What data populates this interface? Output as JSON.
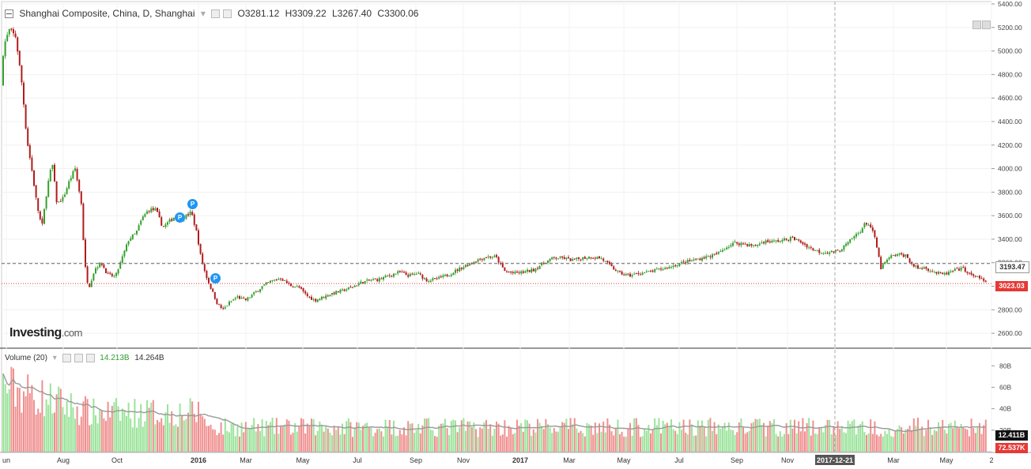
{
  "header": {
    "symbol": "Shanghai Composite, China, D, Shanghai",
    "open": "O3281.12",
    "high": "H3309.22",
    "low": "L3267.40",
    "close": "C3300.06"
  },
  "volume_legend": {
    "label": "Volume (20)",
    "value_green": "14.213B",
    "value_ma": "14.264B"
  },
  "price_labels": {
    "dashed_level": "3193.47",
    "last_price": "3023.03",
    "volume_current": "12.411B",
    "volume_secondary": "72.537K"
  },
  "crosshair_date": "2017-12-21",
  "badges": [
    "P",
    "P",
    "P"
  ],
  "logo": {
    "brand": "Investing",
    "suffix": ".com"
  },
  "colors": {
    "up": "#33a02c",
    "down": "#b01c1c",
    "vol_up": "#9be39b",
    "vol_down": "#f08f8f",
    "ma": "#999999",
    "last": "#e53935"
  },
  "chart_data": [
    {
      "type": "candlestick",
      "title": "Shanghai Composite, China, D, Shanghai",
      "yticks": [
        2600,
        2800,
        3000,
        3200,
        3400,
        3600,
        3800,
        4000,
        4200,
        4400,
        4600,
        4800,
        5000,
        5200,
        5400
      ],
      "ylim": [
        2480,
        5420
      ],
      "x_tick_labels": [
        "un",
        "Aug",
        "Oct",
        "2016",
        "Mar",
        "May",
        "Jul",
        "Sep",
        "Nov",
        "2017",
        "Mar",
        "May",
        "Jul",
        "Sep",
        "Nov",
        "2017-12-21",
        "Mar",
        "May",
        "2"
      ],
      "close_path": [
        [
          0,
          4700
        ],
        [
          5,
          5050
        ],
        [
          12,
          5180
        ],
        [
          20,
          5120
        ],
        [
          28,
          4700
        ],
        [
          34,
          4250
        ],
        [
          40,
          4000
        ],
        [
          47,
          3680
        ],
        [
          53,
          3500
        ],
        [
          60,
          3850
        ],
        [
          66,
          4050
        ],
        [
          72,
          3700
        ],
        [
          80,
          3750
        ],
        [
          88,
          3900
        ],
        [
          95,
          4000
        ],
        [
          103,
          3700
        ],
        [
          107,
          3200
        ],
        [
          112,
          2980
        ],
        [
          120,
          3150
        ],
        [
          128,
          3200
        ],
        [
          136,
          3100
        ],
        [
          146,
          3080
        ],
        [
          155,
          3250
        ],
        [
          163,
          3400
        ],
        [
          172,
          3450
        ],
        [
          180,
          3580
        ],
        [
          188,
          3650
        ],
        [
          197,
          3650
        ],
        [
          206,
          3500
        ],
        [
          214,
          3550
        ],
        [
          222,
          3600
        ],
        [
          232,
          3580
        ],
        [
          242,
          3630
        ],
        [
          249,
          3450
        ],
        [
          254,
          3250
        ],
        [
          260,
          3100
        ],
        [
          267,
          2980
        ],
        [
          275,
          2850
        ],
        [
          282,
          2800
        ],
        [
          290,
          2860
        ],
        [
          300,
          2910
        ],
        [
          310,
          2880
        ],
        [
          320,
          2930
        ],
        [
          332,
          3000
        ],
        [
          342,
          3040
        ],
        [
          355,
          3070
        ],
        [
          366,
          3010
        ],
        [
          378,
          2990
        ],
        [
          388,
          2920
        ],
        [
          398,
          2880
        ],
        [
          410,
          2910
        ],
        [
          420,
          2940
        ],
        [
          432,
          2960
        ],
        [
          444,
          2990
        ],
        [
          456,
          3030
        ],
        [
          468,
          3050
        ],
        [
          480,
          3060
        ],
        [
          492,
          3090
        ],
        [
          505,
          3120
        ],
        [
          517,
          3090
        ],
        [
          528,
          3110
        ],
        [
          540,
          3050
        ],
        [
          552,
          3060
        ],
        [
          564,
          3090
        ],
        [
          576,
          3130
        ],
        [
          590,
          3180
        ],
        [
          602,
          3220
        ],
        [
          615,
          3250
        ],
        [
          627,
          3250
        ],
        [
          638,
          3130
        ],
        [
          650,
          3110
        ],
        [
          662,
          3120
        ],
        [
          675,
          3140
        ],
        [
          688,
          3200
        ],
        [
          700,
          3240
        ],
        [
          712,
          3240
        ],
        [
          724,
          3220
        ],
        [
          736,
          3240
        ],
        [
          748,
          3250
        ],
        [
          760,
          3240
        ],
        [
          772,
          3170
        ],
        [
          784,
          3110
        ],
        [
          796,
          3090
        ],
        [
          808,
          3110
        ],
        [
          820,
          3120
        ],
        [
          832,
          3140
        ],
        [
          846,
          3160
        ],
        [
          858,
          3190
        ],
        [
          870,
          3210
        ],
        [
          882,
          3230
        ],
        [
          894,
          3250
        ],
        [
          906,
          3270
        ],
        [
          918,
          3330
        ],
        [
          930,
          3370
        ],
        [
          942,
          3360
        ],
        [
          954,
          3340
        ],
        [
          966,
          3380
        ],
        [
          978,
          3380
        ],
        [
          990,
          3390
        ],
        [
          1002,
          3410
        ],
        [
          1014,
          3370
        ],
        [
          1026,
          3320
        ],
        [
          1038,
          3290
        ],
        [
          1050,
          3290
        ],
        [
          1060,
          3300
        ],
        [
          1070,
          3350
        ],
        [
          1080,
          3420
        ],
        [
          1088,
          3470
        ],
        [
          1095,
          3540
        ],
        [
          1100,
          3520
        ],
        [
          1106,
          3420
        ],
        [
          1110,
          3300
        ],
        [
          1114,
          3150
        ],
        [
          1118,
          3190
        ],
        [
          1126,
          3250
        ],
        [
          1136,
          3270
        ],
        [
          1146,
          3260
        ],
        [
          1154,
          3180
        ],
        [
          1162,
          3150
        ],
        [
          1170,
          3160
        ],
        [
          1178,
          3130
        ],
        [
          1186,
          3110
        ],
        [
          1194,
          3100
        ],
        [
          1202,
          3120
        ],
        [
          1210,
          3140
        ],
        [
          1218,
          3150
        ],
        [
          1224,
          3120
        ],
        [
          1230,
          3080
        ],
        [
          1236,
          3090
        ],
        [
          1242,
          3050
        ],
        [
          1248,
          3023
        ]
      ],
      "volume": {
        "yticks": [
          "20B",
          "40B",
          "60B",
          "80B"
        ],
        "ma_label": "Volume (20)"
      }
    }
  ]
}
